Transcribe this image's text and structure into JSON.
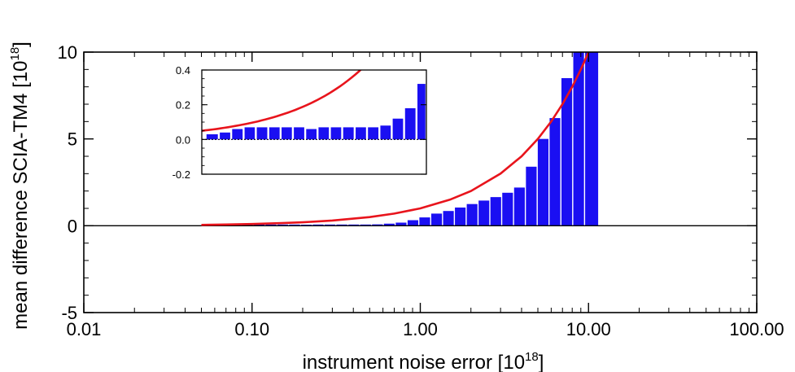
{
  "chart_data": [
    {
      "type": "bar",
      "xscale": "log",
      "xlim": [
        0.01,
        100
      ],
      "ylim": [
        -5,
        10
      ],
      "xticks": [
        "0.01",
        "0.10",
        "1.00",
        "10.00",
        "100.00"
      ],
      "yticks": [
        "-5",
        "0",
        "5",
        "10"
      ],
      "xlabel": "instrument noise error [10",
      "xlabel_sup": "18",
      "xlabel_end": "]",
      "ylabel": "mean difference SCIA-TM4 [10",
      "ylabel_sup": "18",
      "ylabel_end": "]",
      "bar_color": "#1a0ff2",
      "curve_color": "#e8141c",
      "bins": [
        {
          "x0": 0.0525,
          "x1": 0.0625,
          "y": 0.03
        },
        {
          "x0": 0.0625,
          "x1": 0.0735,
          "y": 0.04
        },
        {
          "x0": 0.0735,
          "x1": 0.0865,
          "y": 0.06
        },
        {
          "x0": 0.0865,
          "x1": 0.1015,
          "y": 0.07
        },
        {
          "x0": 0.1015,
          "x1": 0.1195,
          "y": 0.07
        },
        {
          "x0": 0.1195,
          "x1": 0.1405,
          "y": 0.07
        },
        {
          "x0": 0.1405,
          "x1": 0.165,
          "y": 0.07
        },
        {
          "x0": 0.165,
          "x1": 0.194,
          "y": 0.07
        },
        {
          "x0": 0.194,
          "x1": 0.228,
          "y": 0.06
        },
        {
          "x0": 0.228,
          "x1": 0.268,
          "y": 0.07
        },
        {
          "x0": 0.268,
          "x1": 0.315,
          "y": 0.07
        },
        {
          "x0": 0.315,
          "x1": 0.371,
          "y": 0.07
        },
        {
          "x0": 0.371,
          "x1": 0.436,
          "y": 0.07
        },
        {
          "x0": 0.436,
          "x1": 0.513,
          "y": 0.07
        },
        {
          "x0": 0.513,
          "x1": 0.603,
          "y": 0.08
        },
        {
          "x0": 0.603,
          "x1": 0.709,
          "y": 0.12
        },
        {
          "x0": 0.709,
          "x1": 0.834,
          "y": 0.18
        },
        {
          "x0": 0.834,
          "x1": 0.98,
          "y": 0.32
        },
        {
          "x0": 0.98,
          "x1": 1.153,
          "y": 0.48
        },
        {
          "x0": 1.153,
          "x1": 1.356,
          "y": 0.7
        },
        {
          "x0": 1.356,
          "x1": 1.594,
          "y": 0.85
        },
        {
          "x0": 1.594,
          "x1": 1.874,
          "y": 1.05
        },
        {
          "x0": 1.874,
          "x1": 2.204,
          "y": 1.25
        },
        {
          "x0": 2.204,
          "x1": 2.591,
          "y": 1.45
        },
        {
          "x0": 2.591,
          "x1": 3.047,
          "y": 1.65
        },
        {
          "x0": 3.047,
          "x1": 3.583,
          "y": 1.9
        },
        {
          "x0": 3.583,
          "x1": 4.213,
          "y": 2.2
        },
        {
          "x0": 4.213,
          "x1": 4.954,
          "y": 3.4
        },
        {
          "x0": 4.954,
          "x1": 5.825,
          "y": 5.0
        },
        {
          "x0": 5.825,
          "x1": 6.85,
          "y": 6.2
        },
        {
          "x0": 6.85,
          "x1": 8.055,
          "y": 8.5
        },
        {
          "x0": 8.055,
          "x1": 9.472,
          "y": 10
        },
        {
          "x0": 9.472,
          "x1": 11.5,
          "y": 10
        }
      ],
      "curve": {
        "x": [
          0.05,
          0.07,
          0.1,
          0.15,
          0.2,
          0.3,
          0.5,
          0.7,
          1.0,
          1.5,
          2.0,
          3.0,
          4.0,
          5.0,
          6.0,
          7.0,
          8.0,
          9.0,
          9.5,
          10.0
        ],
        "y": [
          0.05,
          0.07,
          0.1,
          0.15,
          0.2,
          0.3,
          0.5,
          0.7,
          1.0,
          1.5,
          2.0,
          3.0,
          4.0,
          5.0,
          6.0,
          7.0,
          8.0,
          9.0,
          9.5,
          10.0
        ]
      },
      "zero_line": true
    },
    {
      "type": "bar",
      "role": "inset",
      "xscale": "log",
      "xlim": [
        0.05,
        0.95
      ],
      "ylim": [
        -0.2,
        0.4
      ],
      "yticks": [
        "-0.2",
        "0.0",
        "0.2",
        "0.4"
      ],
      "zero_line_style": "dotted"
    }
  ]
}
